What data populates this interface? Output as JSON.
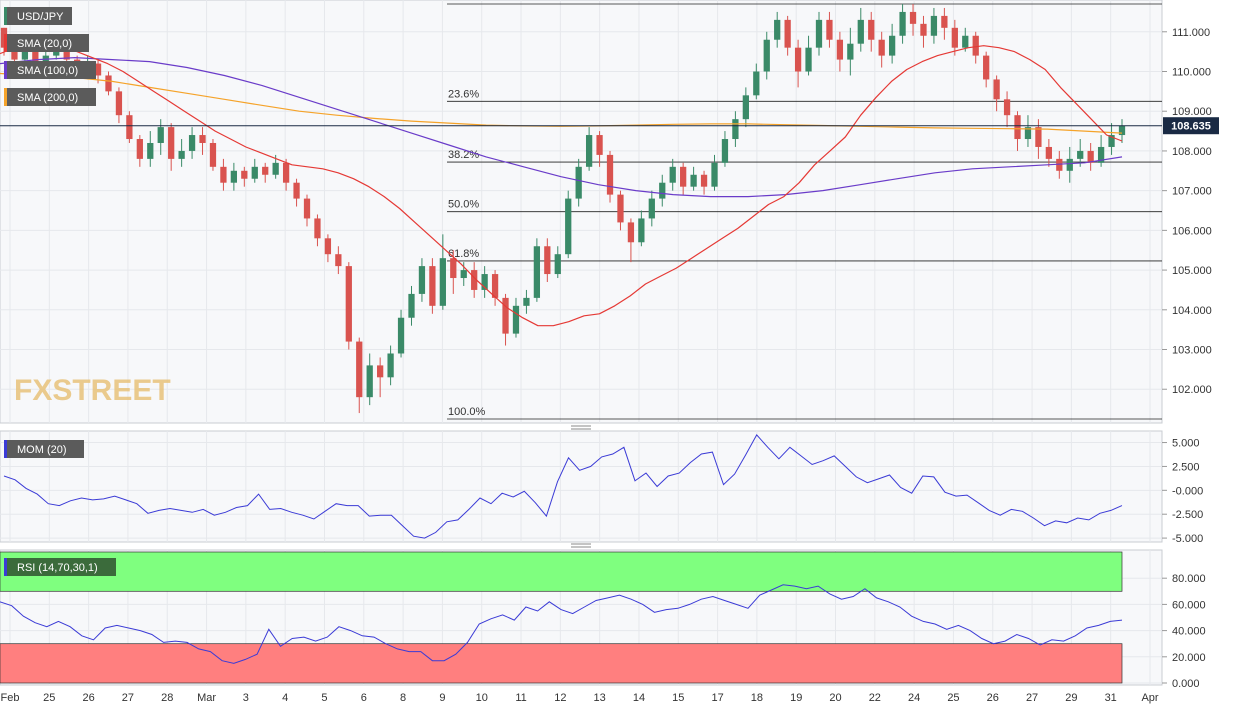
{
  "chart_data": {
    "type": "candlestick",
    "symbol": "USD/JPY",
    "last_price": "108.635",
    "indicators": {
      "sma20": "SMA (20,0)",
      "sma100": "SMA (100,0)",
      "sma200": "SMA (200,0)",
      "mom": "MOM (20)",
      "rsi": "RSI (14,70,30,1)"
    },
    "colors": {
      "up": "#3a8a68",
      "down": "#d9534f",
      "sma20": "#e53935",
      "sma100": "#6a3cc9",
      "sma200": "#f5a32a",
      "osc": "#3b3bd6",
      "rsi_over": "#7fff7f",
      "rsi_under": "#ff7f7f"
    },
    "watermark": "FXSTREET",
    "fibonacci": [
      {
        "label": "23.6%",
        "price": 109.25
      },
      {
        "label": "38.2%",
        "price": 107.72
      },
      {
        "label": "50.0%",
        "price": 106.47
      },
      {
        "label": "61.8%",
        "price": 105.23
      },
      {
        "label": "100.0%",
        "price": 101.25
      }
    ],
    "fib_top": 111.7,
    "price_axis": {
      "min": 101.2,
      "max": 111.75,
      "ticks": [
        "111.000",
        "110.000",
        "109.000",
        "108.000",
        "107.000",
        "106.000",
        "105.000",
        "104.000",
        "103.000",
        "102.000"
      ]
    },
    "mom_axis": {
      "min": -5.2,
      "max": 6.0,
      "ticks": [
        "5.000",
        "2.500",
        "-0.000",
        "-2.500",
        "-5.000"
      ]
    },
    "rsi_axis": {
      "min": 0,
      "max": 100,
      "ticks": [
        "80.000",
        "60.000",
        "40.000",
        "20.000",
        "0.000"
      ],
      "overbought": 70,
      "oversold": 30
    },
    "x_labels": [
      "Feb",
      "25",
      "26",
      "27",
      "28",
      "Mar",
      "3",
      "4",
      "5",
      "6",
      "8",
      "9",
      "10",
      "11",
      "12",
      "13",
      "14",
      "15",
      "17",
      "18",
      "19",
      "20",
      "22",
      "24",
      "25",
      "26",
      "27",
      "29",
      "31",
      "Apr"
    ],
    "candles": [
      [
        111.1,
        110.6,
        111.1,
        110.4
      ],
      [
        110.6,
        110.3,
        110.8,
        110.1
      ],
      [
        110.3,
        110.5,
        110.7,
        110.1
      ],
      [
        110.5,
        110.2,
        110.7,
        110.0
      ],
      [
        110.2,
        110.4,
        110.6,
        110.1
      ],
      [
        110.4,
        110.6,
        110.8,
        110.3
      ],
      [
        110.6,
        110.3,
        110.7,
        110.2
      ],
      [
        110.3,
        110.0,
        110.4,
        109.9
      ],
      [
        110.0,
        110.2,
        110.4,
        109.8
      ],
      [
        110.2,
        109.9,
        110.3,
        109.7
      ],
      [
        109.9,
        109.5,
        110.0,
        109.4
      ],
      [
        109.5,
        108.9,
        109.6,
        108.7
      ],
      [
        108.9,
        108.3,
        109.0,
        108.2
      ],
      [
        108.3,
        107.8,
        108.4,
        107.6
      ],
      [
        107.8,
        108.2,
        108.5,
        107.6
      ],
      [
        108.2,
        108.6,
        108.8,
        107.9
      ],
      [
        108.6,
        107.8,
        108.7,
        107.5
      ],
      [
        107.8,
        108.0,
        108.3,
        107.6
      ],
      [
        108.0,
        108.4,
        108.6,
        107.8
      ],
      [
        108.4,
        108.2,
        108.6,
        107.9
      ],
      [
        108.2,
        107.6,
        108.3,
        107.5
      ],
      [
        107.6,
        107.2,
        107.8,
        107.0
      ],
      [
        107.2,
        107.5,
        107.7,
        107.0
      ],
      [
        107.5,
        107.3,
        107.6,
        107.1
      ],
      [
        107.3,
        107.6,
        107.8,
        107.2
      ],
      [
        107.6,
        107.4,
        107.7,
        107.2
      ],
      [
        107.4,
        107.7,
        107.9,
        107.3
      ],
      [
        107.7,
        107.2,
        107.8,
        107.0
      ],
      [
        107.2,
        106.8,
        107.3,
        106.6
      ],
      [
        106.8,
        106.3,
        106.9,
        106.1
      ],
      [
        106.3,
        105.8,
        106.4,
        105.6
      ],
      [
        105.8,
        105.4,
        105.9,
        105.2
      ],
      [
        105.4,
        105.1,
        105.6,
        104.9
      ],
      [
        105.1,
        103.2,
        105.2,
        103.0
      ],
      [
        103.2,
        101.8,
        103.3,
        101.4
      ],
      [
        101.8,
        102.6,
        102.9,
        101.6
      ],
      [
        102.6,
        102.3,
        102.8,
        101.8
      ],
      [
        102.3,
        102.9,
        103.1,
        102.1
      ],
      [
        102.9,
        103.8,
        104.0,
        102.8
      ],
      [
        103.8,
        104.4,
        104.6,
        103.6
      ],
      [
        104.4,
        105.1,
        105.3,
        104.2
      ],
      [
        105.1,
        104.1,
        105.3,
        103.9
      ],
      [
        104.1,
        105.3,
        105.9,
        104.0
      ],
      [
        105.3,
        104.8,
        105.5,
        104.4
      ],
      [
        104.8,
        105.0,
        105.2,
        104.6
      ],
      [
        105.0,
        104.5,
        105.2,
        104.3
      ],
      [
        104.5,
        104.9,
        105.1,
        104.3
      ],
      [
        104.9,
        104.3,
        105.0,
        104.1
      ],
      [
        104.3,
        103.4,
        104.4,
        103.1
      ],
      [
        103.4,
        104.1,
        104.3,
        103.3
      ],
      [
        104.1,
        104.3,
        104.5,
        103.9
      ],
      [
        104.3,
        105.6,
        105.8,
        104.2
      ],
      [
        105.6,
        104.9,
        105.8,
        104.7
      ],
      [
        104.9,
        105.4,
        105.6,
        104.8
      ],
      [
        105.4,
        106.8,
        107.0,
        105.3
      ],
      [
        106.8,
        107.6,
        107.8,
        106.6
      ],
      [
        107.6,
        108.4,
        108.6,
        107.5
      ],
      [
        108.4,
        107.9,
        108.5,
        107.6
      ],
      [
        107.9,
        106.9,
        108.0,
        106.7
      ],
      [
        106.9,
        106.2,
        107.0,
        106.0
      ],
      [
        106.2,
        105.7,
        106.3,
        105.2
      ],
      [
        105.7,
        106.3,
        106.5,
        105.6
      ],
      [
        106.3,
        106.8,
        107.0,
        106.1
      ],
      [
        106.8,
        107.2,
        107.4,
        106.6
      ],
      [
        107.2,
        107.6,
        107.8,
        107.0
      ],
      [
        107.6,
        107.1,
        107.7,
        106.9
      ],
      [
        107.1,
        107.4,
        107.6,
        107.0
      ],
      [
        107.4,
        107.1,
        107.5,
        106.9
      ],
      [
        107.1,
        107.7,
        107.9,
        107.0
      ],
      [
        107.7,
        108.3,
        108.5,
        107.6
      ],
      [
        108.3,
        108.8,
        109.0,
        108.1
      ],
      [
        108.8,
        109.4,
        109.6,
        108.6
      ],
      [
        109.4,
        110.0,
        110.2,
        109.3
      ],
      [
        110.0,
        110.8,
        111.0,
        109.8
      ],
      [
        110.8,
        111.3,
        111.5,
        110.6
      ],
      [
        111.3,
        110.6,
        111.4,
        110.4
      ],
      [
        110.6,
        110.0,
        110.8,
        109.6
      ],
      [
        110.0,
        110.6,
        110.9,
        109.9
      ],
      [
        110.6,
        111.3,
        111.5,
        110.4
      ],
      [
        111.3,
        110.8,
        111.5,
        110.6
      ],
      [
        110.8,
        110.3,
        111.0,
        110.0
      ],
      [
        110.3,
        110.7,
        111.1,
        109.9
      ],
      [
        110.7,
        111.3,
        111.6,
        110.5
      ],
      [
        111.3,
        110.8,
        111.5,
        110.5
      ],
      [
        110.8,
        110.4,
        111.0,
        110.1
      ],
      [
        110.4,
        110.9,
        111.2,
        110.2
      ],
      [
        110.9,
        111.5,
        111.7,
        110.7
      ],
      [
        111.5,
        111.2,
        111.7,
        110.9
      ],
      [
        111.2,
        110.9,
        111.4,
        110.6
      ],
      [
        110.9,
        111.4,
        111.6,
        110.7
      ],
      [
        111.4,
        111.1,
        111.6,
        110.8
      ],
      [
        111.1,
        110.6,
        111.3,
        110.4
      ],
      [
        110.6,
        110.9,
        111.1,
        110.5
      ],
      [
        110.9,
        110.4,
        111.0,
        110.2
      ],
      [
        110.4,
        109.8,
        110.5,
        109.6
      ],
      [
        109.8,
        109.3,
        109.9,
        109.0
      ],
      [
        109.3,
        108.9,
        109.5,
        108.6
      ],
      [
        108.9,
        108.3,
        109.0,
        108.0
      ],
      [
        108.3,
        108.6,
        108.9,
        108.1
      ],
      [
        108.6,
        108.1,
        108.8,
        107.8
      ],
      [
        108.1,
        107.8,
        108.3,
        107.6
      ],
      [
        107.8,
        107.5,
        108.0,
        107.3
      ],
      [
        107.5,
        107.8,
        108.1,
        107.2
      ],
      [
        107.8,
        108.0,
        108.3,
        107.6
      ],
      [
        108.0,
        107.7,
        108.2,
        107.5
      ],
      [
        107.7,
        108.1,
        108.4,
        107.6
      ],
      [
        108.1,
        108.4,
        108.7,
        107.9
      ],
      [
        108.4,
        108.64,
        108.8,
        108.2
      ]
    ],
    "sma20": [
      110.45,
      110.6,
      110.7,
      110.7,
      110.6,
      110.5,
      110.35,
      110.2,
      110.0,
      109.75,
      109.5,
      109.25,
      109.0,
      108.75,
      108.5,
      108.3,
      108.1,
      107.95,
      107.8,
      107.65,
      107.6,
      107.55,
      107.45,
      107.3,
      107.1,
      106.85,
      106.55,
      106.2,
      105.85,
      105.5,
      105.15,
      104.75,
      104.4,
      104.05,
      103.8,
      103.6,
      103.6,
      103.7,
      103.85,
      103.9,
      104.1,
      104.35,
      104.65,
      104.85,
      105.05,
      105.3,
      105.55,
      105.8,
      106.05,
      106.35,
      106.65,
      106.85,
      107.2,
      107.65,
      108.0,
      108.35,
      108.9,
      109.35,
      109.75,
      110.05,
      110.25,
      110.4,
      110.5,
      110.6,
      110.65,
      110.6,
      110.5,
      110.3,
      110.05,
      109.6,
      109.2,
      108.8,
      108.4,
      108.25
    ],
    "sma20_x0": 0,
    "sma100": [
      110.2,
      110.3,
      110.35,
      110.3,
      110.25,
      110.1,
      109.9,
      109.65,
      109.35,
      109.05,
      108.75,
      108.45,
      108.15,
      107.85,
      107.6,
      107.35,
      107.15,
      107.0,
      106.9,
      106.85,
      106.85,
      106.9,
      107.0,
      107.15,
      107.3,
      107.45,
      107.55,
      107.6,
      107.65,
      107.7,
      107.85
    ],
    "sma200": [
      109.95,
      109.9,
      109.85,
      109.75,
      109.6,
      109.45,
      109.3,
      109.15,
      109.0,
      108.9,
      108.82,
      108.75,
      108.7,
      108.65,
      108.63,
      108.62,
      108.63,
      108.65,
      108.67,
      108.68,
      108.68,
      108.66,
      108.64,
      108.62,
      108.6,
      108.58,
      108.57,
      108.56,
      108.55,
      108.5,
      108.45
    ],
    "mom": [
      1.5,
      1.1,
      0.2,
      -0.4,
      -1.4,
      -1.6,
      -1.1,
      -0.8,
      -1.0,
      -0.9,
      -0.6,
      -1.0,
      -1.4,
      -2.4,
      -2.1,
      -1.9,
      -2.1,
      -2.3,
      -2.0,
      -2.6,
      -2.3,
      -1.8,
      -1.6,
      -0.4,
      -2.0,
      -1.9,
      -2.3,
      -2.6,
      -3.0,
      -2.2,
      -1.4,
      -1.6,
      -1.6,
      -2.7,
      -2.6,
      -2.6,
      -3.7,
      -4.8,
      -5.0,
      -4.4,
      -3.3,
      -3.1,
      -2.0,
      -0.8,
      -1.4,
      -0.3,
      -0.7,
      -0.1,
      -1.3,
      -2.7,
      0.9,
      3.4,
      2.1,
      2.5,
      3.5,
      3.8,
      4.5,
      1.0,
      1.8,
      0.4,
      1.5,
      1.8,
      2.9,
      3.8,
      4.0,
      0.6,
      1.7,
      3.7,
      5.8,
      4.5,
      3.3,
      4.5,
      3.6,
      2.7,
      3.1,
      3.6,
      2.5,
      1.4,
      0.8,
      1.2,
      1.6,
      0.3,
      -0.3,
      1.5,
      1.4,
      -0.2,
      -0.6,
      -0.5,
      -1.3,
      -2.1,
      -2.6,
      -2.0,
      -2.2,
      -2.9,
      -3.7,
      -3.2,
      -3.4,
      -2.9,
      -3.1,
      -2.4,
      -2.1,
      -1.6
    ],
    "rsi": [
      62,
      59,
      51,
      46,
      43,
      47,
      43,
      36,
      33,
      42,
      44,
      42,
      40,
      37,
      31,
      32,
      31,
      26,
      24,
      17,
      15,
      18,
      22,
      41,
      28,
      34,
      35,
      32,
      35,
      43,
      40,
      36,
      35,
      30,
      26,
      24,
      24,
      17,
      17,
      22,
      31,
      45,
      49,
      52,
      48,
      58,
      55,
      62,
      56,
      53,
      58,
      63,
      65,
      67,
      64,
      60,
      54,
      56,
      57,
      60,
      64,
      66,
      63,
      60,
      57,
      67,
      71,
      75,
      74,
      72,
      74,
      68,
      64,
      66,
      72,
      65,
      62,
      58,
      51,
      47,
      45,
      41,
      44,
      40,
      34,
      30,
      32,
      37,
      34,
      29,
      33,
      32,
      36,
      42,
      44,
      47,
      48
    ],
    "rsi_x0": 0
  }
}
